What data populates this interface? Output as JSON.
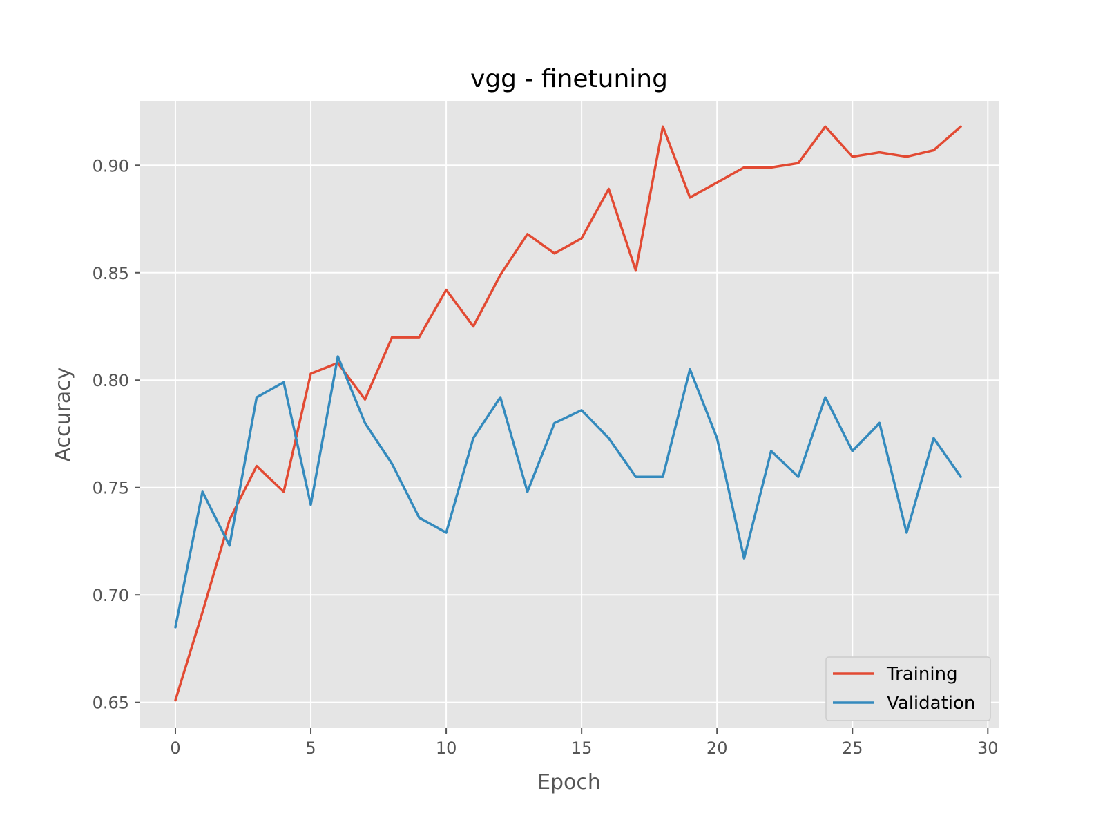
{
  "chart_data": {
    "type": "line",
    "title": "vgg - finetuning",
    "xlabel": "Epoch",
    "ylabel": "Accuracy",
    "xlim": [
      -1.3,
      30.4
    ],
    "ylim": [
      0.638,
      0.93
    ],
    "xticks": [
      0,
      5,
      10,
      15,
      20,
      25,
      30
    ],
    "yticks": [
      0.65,
      0.7,
      0.75,
      0.8,
      0.85,
      0.9
    ],
    "ytick_labels": [
      "0.65",
      "0.70",
      "0.75",
      "0.80",
      "0.85",
      "0.90"
    ],
    "grid": true,
    "legend_position": "lower-right",
    "x": [
      0,
      1,
      2,
      3,
      4,
      5,
      6,
      7,
      8,
      9,
      10,
      11,
      12,
      13,
      14,
      15,
      16,
      17,
      18,
      19,
      20,
      21,
      22,
      23,
      24,
      25,
      26,
      27,
      28,
      29
    ],
    "series": [
      {
        "name": "Training",
        "color": "#E24A33",
        "values": [
          0.651,
          0.692,
          0.735,
          0.76,
          0.748,
          0.803,
          0.808,
          0.791,
          0.82,
          0.82,
          0.842,
          0.825,
          0.849,
          0.868,
          0.859,
          0.866,
          0.889,
          0.851,
          0.918,
          0.885,
          0.892,
          0.899,
          0.899,
          0.901,
          0.918,
          0.904,
          0.906,
          0.904,
          0.907,
          0.918
        ]
      },
      {
        "name": "Validation",
        "color": "#348ABD",
        "values": [
          0.685,
          0.748,
          0.723,
          0.792,
          0.799,
          0.742,
          0.811,
          0.78,
          0.761,
          0.736,
          0.729,
          0.773,
          0.792,
          0.748,
          0.78,
          0.786,
          0.773,
          0.755,
          0.755,
          0.805,
          0.773,
          0.717,
          0.767,
          0.755,
          0.792,
          0.767,
          0.78,
          0.729,
          0.773,
          0.755
        ]
      }
    ]
  }
}
